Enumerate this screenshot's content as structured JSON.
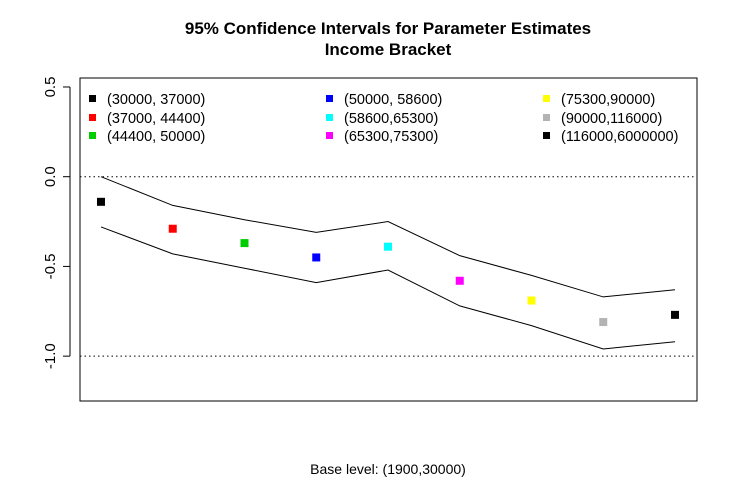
{
  "chart_data": {
    "type": "scatter",
    "title": "95% Confidence Intervals for Parameter Estimates",
    "subtitle": "Income Bracket",
    "xlabel": "Base level: (1900,30000)",
    "ylabel": "",
    "ylim": [
      -1.25,
      0.55
    ],
    "yticks": [
      0.5,
      0.0,
      -0.5,
      -1.0
    ],
    "ytick_labels": [
      "0.5",
      "0.0",
      "-0.5",
      "-1.0"
    ],
    "reference_lines": [
      0.0,
      -1.0
    ],
    "grid": false,
    "legend_position": "top",
    "series": [
      {
        "name": "(30000, 37000)",
        "color": "#000000",
        "estimate": -0.14,
        "upper": 0.0,
        "lower": -0.28
      },
      {
        "name": "(37000, 44400)",
        "color": "#ff0000",
        "estimate": -0.29,
        "upper": -0.16,
        "lower": -0.43
      },
      {
        "name": "(44400, 50000)",
        "color": "#00cd00",
        "estimate": -0.37,
        "upper": -0.24,
        "lower": -0.51
      },
      {
        "name": "(50000, 58600)",
        "color": "#0000ff",
        "estimate": -0.45,
        "upper": -0.31,
        "lower": -0.59
      },
      {
        "name": "(58600,65300)",
        "color": "#00ffff",
        "estimate": -0.39,
        "upper": -0.25,
        "lower": -0.52
      },
      {
        "name": "(65300,75300)",
        "color": "#ff00ff",
        "estimate": -0.58,
        "upper": -0.44,
        "lower": -0.72
      },
      {
        "name": "(75300,90000)",
        "color": "#ffff00",
        "estimate": -0.69,
        "upper": -0.55,
        "lower": -0.83
      },
      {
        "name": "(90000,116000)",
        "color": "#b3b3b3",
        "estimate": -0.81,
        "upper": -0.67,
        "lower": -0.96
      },
      {
        "name": "(116000,6000000)",
        "color": "#000000",
        "estimate": -0.77,
        "upper": -0.63,
        "lower": -0.92
      }
    ]
  }
}
